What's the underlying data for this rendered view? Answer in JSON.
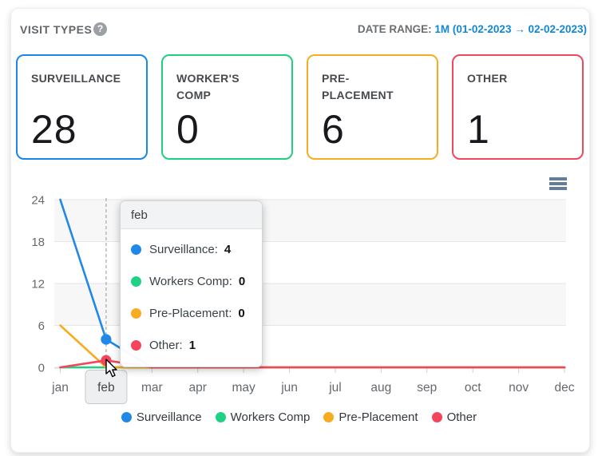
{
  "header": {
    "title": "VISIT TYPES",
    "help_icon": "?",
    "date_range_label": "DATE RANGE:",
    "date_range_value": "1M (01-02-2023 → 02-02-2023)"
  },
  "cards": [
    {
      "label": "SURVEILLANCE",
      "value": "28",
      "border_color": "#1788ea"
    },
    {
      "label": "WORKER'S COMP",
      "value": "0",
      "border_color": "#1ed17e"
    },
    {
      "label": "PRE-PLACEMENT",
      "value": "6",
      "border_color": "#f6ad22"
    },
    {
      "label": "OTHER",
      "value": "1",
      "border_color": "#f0475c"
    }
  ],
  "chart_data": {
    "type": "line",
    "title": "",
    "categories": [
      "jan",
      "feb",
      "mar",
      "apr",
      "may",
      "jun",
      "jul",
      "aug",
      "sep",
      "oct",
      "nov",
      "dec"
    ],
    "series": [
      {
        "name": "Surveillance",
        "color": "#2088e8",
        "values": [
          24,
          4,
          0,
          0,
          0,
          0,
          0,
          0,
          0,
          0,
          0,
          0
        ]
      },
      {
        "name": "Workers Comp",
        "color": "#1fd185",
        "values": [
          0,
          0,
          0,
          0,
          0,
          0,
          0,
          0,
          0,
          0,
          0,
          0
        ]
      },
      {
        "name": "Pre-Placement",
        "color": "#f9ab20",
        "values": [
          6,
          0,
          0,
          0,
          0,
          0,
          0,
          0,
          0,
          0,
          0,
          0
        ]
      },
      {
        "name": "Other",
        "color": "#f4455c",
        "values": [
          0,
          1,
          0,
          0,
          0,
          0,
          0,
          0,
          0,
          0,
          0,
          0
        ]
      }
    ],
    "ylim": [
      0,
      24
    ],
    "yticks": [
      0,
      6,
      12,
      18,
      24
    ],
    "band_pairs": [
      [
        18,
        24
      ],
      [
        6,
        12
      ]
    ],
    "band_color": "#f7f7f7",
    "grid_color": "#e6e6e6",
    "axis_line_color": "#d4d7d9",
    "tick_color": "#ced2d5",
    "axis_label_color": "#65696d",
    "hover_label_color": "#44484c",
    "crosshair_color": "#aaaeb2",
    "hover_category": "feb",
    "hover_index": 1,
    "markers": [
      {
        "series": "Surveillance",
        "value": 4
      },
      {
        "series": "Other",
        "value": 1
      }
    ],
    "legend_position": "bottom",
    "grid": true
  },
  "tooltip": {
    "title": "feb",
    "rows": [
      {
        "label": "Surveillance:",
        "value": "4",
        "color": "#2088e8"
      },
      {
        "label": "Workers Comp:",
        "value": "0",
        "color": "#1fd185"
      },
      {
        "label": "Pre-Placement:",
        "value": "0",
        "color": "#f9ab20"
      },
      {
        "label": "Other:",
        "value": "1",
        "color": "#f4455c"
      }
    ]
  },
  "legend": {
    "items": [
      {
        "label": "Surveillance",
        "color": "#2088e8"
      },
      {
        "label": "Workers Comp",
        "color": "#1fd185"
      },
      {
        "label": "Pre-Placement",
        "color": "#f9ab20"
      },
      {
        "label": "Other",
        "color": "#f4455c"
      }
    ]
  }
}
